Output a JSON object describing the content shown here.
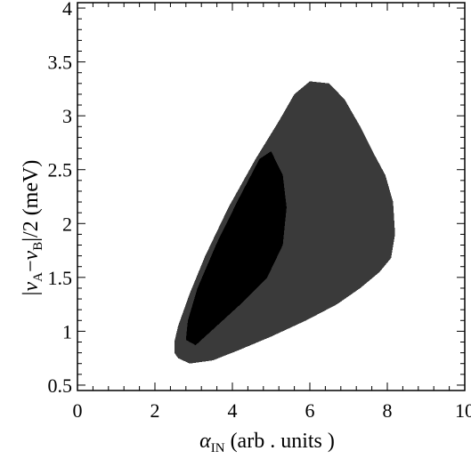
{
  "chart_data": {
    "type": "heatmap",
    "title": "",
    "xlabel": {
      "symbol": "α",
      "sub": "IN",
      "rest": " (arb . units )"
    },
    "ylabel": {
      "open": "|",
      "s1": "ν",
      "sub1": "A",
      "mid": "−",
      "s2": "ν",
      "sub2": "B",
      "rest": "|/2 (meV)"
    },
    "xlim": [
      0,
      10
    ],
    "ylim": [
      0.45,
      4.05
    ],
    "xticks": [
      "0",
      "2",
      "4",
      "6",
      "8",
      "10"
    ],
    "yticks": [
      "0.5",
      "1",
      "1.5",
      "2",
      "2.5",
      "3",
      "3.5",
      "4"
    ],
    "grid": false,
    "colors": {
      "outer_region": "#3a3a3a",
      "inner_region": "#000000",
      "background": "#ffffff"
    },
    "regions": [
      {
        "level": "outer",
        "boundary": [
          [
            2.5,
            0.8
          ],
          [
            2.6,
            0.75
          ],
          [
            2.9,
            0.7
          ],
          [
            3.5,
            0.73
          ],
          [
            4.2,
            0.83
          ],
          [
            5.0,
            0.95
          ],
          [
            5.9,
            1.1
          ],
          [
            6.7,
            1.25
          ],
          [
            7.3,
            1.4
          ],
          [
            7.8,
            1.55
          ],
          [
            8.1,
            1.68
          ],
          [
            8.2,
            1.9
          ],
          [
            8.15,
            2.2
          ],
          [
            7.95,
            2.45
          ],
          [
            7.65,
            2.65
          ],
          [
            7.3,
            2.9
          ],
          [
            6.9,
            3.15
          ],
          [
            6.5,
            3.3
          ],
          [
            6.0,
            3.32
          ],
          [
            5.6,
            3.2
          ],
          [
            5.2,
            2.95
          ],
          [
            4.6,
            2.6
          ],
          [
            3.9,
            2.15
          ],
          [
            3.3,
            1.7
          ],
          [
            2.9,
            1.35
          ],
          [
            2.6,
            1.05
          ],
          [
            2.5,
            0.9
          ]
        ]
      },
      {
        "level": "inner",
        "boundary": [
          [
            2.8,
            0.92
          ],
          [
            3.05,
            0.87
          ],
          [
            3.6,
            1.05
          ],
          [
            4.3,
            1.28
          ],
          [
            4.9,
            1.5
          ],
          [
            5.3,
            1.8
          ],
          [
            5.4,
            2.15
          ],
          [
            5.3,
            2.45
          ],
          [
            5.0,
            2.67
          ],
          [
            4.7,
            2.6
          ],
          [
            4.15,
            2.22
          ],
          [
            3.6,
            1.82
          ],
          [
            3.1,
            1.4
          ],
          [
            2.85,
            1.1
          ]
        ]
      }
    ]
  }
}
